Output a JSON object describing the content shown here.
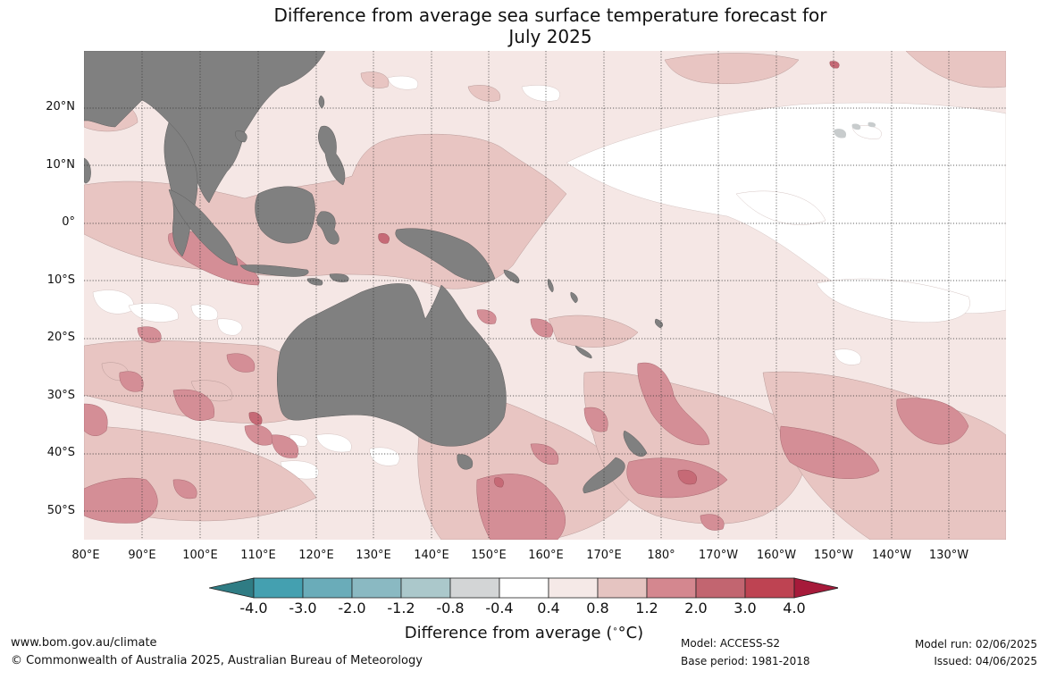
{
  "title": {
    "line1": "Difference from average sea surface temperature forecast for",
    "line2": "July 2025"
  },
  "map": {
    "lat_labels": [
      "20°N",
      "10°N",
      "0°",
      "10°S",
      "20°S",
      "30°S",
      "40°S",
      "50°S"
    ],
    "lon_labels": [
      "80°E",
      "90°E",
      "100°E",
      "110°E",
      "120°E",
      "130°E",
      "140°E",
      "150°E",
      "160°E",
      "170°E",
      "180°",
      "170°W",
      "160°W",
      "150°W",
      "140°W",
      "130°W"
    ],
    "colors": {
      "land": "#808080",
      "ocean_base": "#f5e7e5",
      "near_zero": "#ffffff",
      "warm_0_8": "#e8c5c2",
      "warm_1_2": "#d48e96",
      "warm_2_0": "#c66a76",
      "gridline": "#333333"
    }
  },
  "colorbar": {
    "tick_labels": [
      "-4.0",
      "-3.0",
      "-2.0",
      "-1.2",
      "-0.8",
      "-0.4",
      "0.4",
      "0.8",
      "1.2",
      "2.0",
      "3.0",
      "4.0"
    ],
    "colors": [
      "#2f7c84",
      "#44a0b0",
      "#6aacb9",
      "#8ab9c2",
      "#abc8cb",
      "#d3d5d6",
      "#ffffff",
      "#f5e9e7",
      "#e5c4c1",
      "#d4878f",
      "#c26570",
      "#be4352",
      "#a61a3a"
    ],
    "title": "Difference from average (",
    "title_unit": "°C)"
  },
  "footer": {
    "url": "www.bom.gov.au/climate",
    "copyright": "© Commonwealth of Australia 2025, Australian Bureau of Meteorology",
    "model": "Model: ACCESS-S2",
    "base_period": "Base period: 1981-2018",
    "model_run": "Model run: 02/06/2025",
    "issued": "Issued: 04/06/2025"
  }
}
